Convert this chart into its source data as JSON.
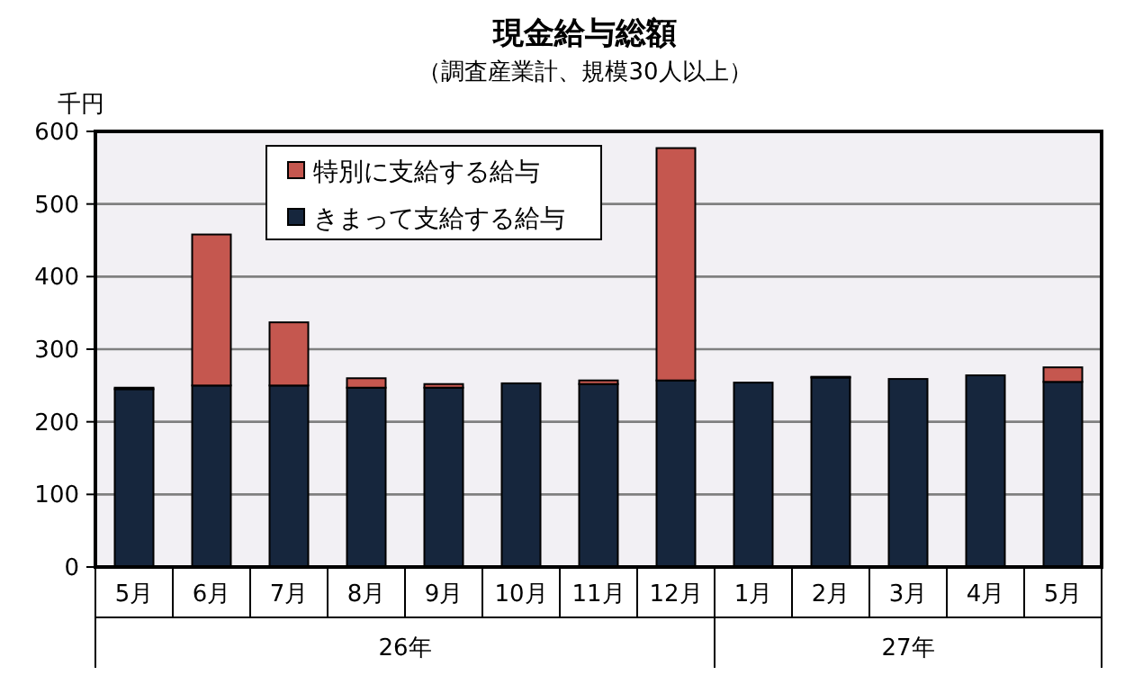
{
  "chart_data": {
    "type": "bar",
    "title": "現金給与総額",
    "subtitle": "（調査産業計、規模30人以上）",
    "ylabel": "千円",
    "categories": [
      "5月",
      "6月",
      "7月",
      "8月",
      "9月",
      "10月",
      "11月",
      "12月",
      "1月",
      "2月",
      "3月",
      "4月",
      "5月"
    ],
    "stacked": true,
    "series": [
      {
        "name": "きまって支給する給与",
        "color": "#16263d",
        "values": [
          245,
          250,
          250,
          247,
          247,
          253,
          252,
          257,
          254,
          261,
          259,
          264,
          255
        ]
      },
      {
        "name": "特別に支給する給与",
        "color": "#c5574f",
        "values": [
          2,
          208,
          87,
          13,
          5,
          null,
          5,
          320,
          null,
          1,
          null,
          null,
          20
        ]
      }
    ],
    "ylim": [
      0,
      600
    ],
    "yticks": [
      0,
      100,
      200,
      300,
      400,
      500,
      600
    ],
    "grid": "y",
    "legend": "top left",
    "annotations": [
      "26年",
      "27年"
    ]
  }
}
